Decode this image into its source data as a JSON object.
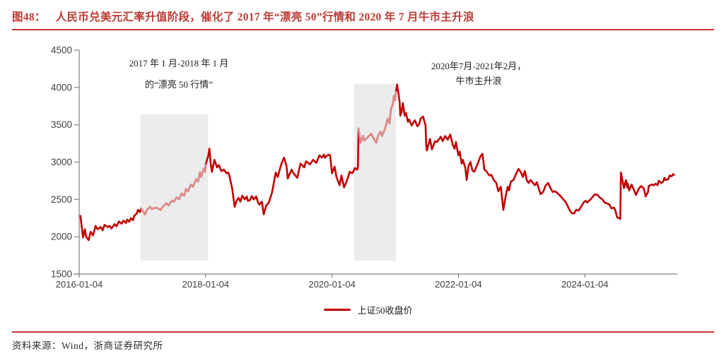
{
  "figure": {
    "label": "图48：",
    "title": "人民币兑美元汇率升值阶段，催化了 2017 年“漂亮 50”行情和 2020 年 7 月牛市主升浪",
    "source": "资料来源：Wind，浙商证券研究所"
  },
  "legend": {
    "label": "上证50收盘价"
  },
  "annotations": [
    {
      "lines": [
        "2017 年 1 月-2018 年 1 月",
        "的“漂亮 50 行情”"
      ]
    },
    {
      "lines": [
        "2020年7月-2021年2月，",
        "牛市主升浪"
      ]
    }
  ],
  "colors": {
    "line": "#c00000",
    "line_highlight": "#db8e8e",
    "band": "#ececec",
    "axis": "#808080",
    "tick_text": "#3f3f3f",
    "accent_red": "#c93530"
  },
  "chart_data": {
    "type": "line",
    "title": "",
    "xlabel": "",
    "ylabel": "",
    "ylim": [
      1500,
      4500
    ],
    "xlim": [
      2016,
      2025.47
    ],
    "grid": false,
    "legend_position": "bottom-center",
    "y_ticks": [
      1500,
      2000,
      2500,
      3000,
      3500,
      4000,
      4500
    ],
    "x_ticks": [
      {
        "value": 2016,
        "label": "2016-01-04"
      },
      {
        "value": 2018,
        "label": "2018-01-04"
      },
      {
        "value": 2020,
        "label": "2020-01-04"
      },
      {
        "value": 2022,
        "label": "2022-01-04"
      },
      {
        "value": 2024,
        "label": "2024-01-04"
      }
    ],
    "bands": [
      {
        "t_start": 2016.97,
        "t_end": 2018.04,
        "v_bottom": 1680,
        "v_top": 3640
      },
      {
        "t_start": 2020.35,
        "t_end": 2021.01,
        "v_bottom": 1680,
        "v_top": 4050
      }
    ],
    "line_highlight_ranges": [
      {
        "t_start": 2016.975,
        "t_end": 2018.005
      },
      {
        "t_start": 2020.415,
        "t_end": 2021.015
      }
    ],
    "series": [
      {
        "name": "上证50收盘价",
        "points": [
          [
            2016.02,
            2280
          ],
          [
            2016.06,
            1990
          ],
          [
            2016.09,
            2100
          ],
          [
            2016.11,
            2000
          ],
          [
            2016.15,
            1955
          ],
          [
            2016.18,
            2065
          ],
          [
            2016.22,
            2020
          ],
          [
            2016.26,
            2145
          ],
          [
            2016.29,
            2100
          ],
          [
            2016.34,
            2130
          ],
          [
            2016.37,
            2085
          ],
          [
            2016.4,
            2160
          ],
          [
            2016.45,
            2130
          ],
          [
            2016.48,
            2145
          ],
          [
            2016.51,
            2110
          ],
          [
            2016.56,
            2170
          ],
          [
            2016.59,
            2140
          ],
          [
            2016.63,
            2205
          ],
          [
            2016.67,
            2175
          ],
          [
            2016.7,
            2215
          ],
          [
            2016.74,
            2185
          ],
          [
            2016.76,
            2230
          ],
          [
            2016.79,
            2200
          ],
          [
            2016.82,
            2250
          ],
          [
            2016.85,
            2220
          ],
          [
            2016.87,
            2280
          ],
          [
            2016.91,
            2310
          ],
          [
            2016.93,
            2360
          ],
          [
            2016.96,
            2330
          ],
          [
            2016.98,
            2380
          ],
          [
            2017.04,
            2300
          ],
          [
            2017.07,
            2360
          ],
          [
            2017.12,
            2400
          ],
          [
            2017.15,
            2370
          ],
          [
            2017.17,
            2380
          ],
          [
            2017.23,
            2390
          ],
          [
            2017.26,
            2370
          ],
          [
            2017.29,
            2360
          ],
          [
            2017.32,
            2400
          ],
          [
            2017.38,
            2450
          ],
          [
            2017.41,
            2420
          ],
          [
            2017.47,
            2485
          ],
          [
            2017.5,
            2470
          ],
          [
            2017.54,
            2530
          ],
          [
            2017.58,
            2500
          ],
          [
            2017.62,
            2580
          ],
          [
            2017.66,
            2550
          ],
          [
            2017.69,
            2640
          ],
          [
            2017.72,
            2610
          ],
          [
            2017.77,
            2700
          ],
          [
            2017.8,
            2670
          ],
          [
            2017.85,
            2770
          ],
          [
            2017.88,
            2740
          ],
          [
            2017.91,
            2865
          ],
          [
            2017.93,
            2800
          ],
          [
            2017.97,
            2910
          ],
          [
            2017.99,
            2870
          ],
          [
            2018.0,
            2960
          ],
          [
            2018.04,
            3080
          ],
          [
            2018.06,
            3180
          ],
          [
            2018.08,
            2980
          ],
          [
            2018.1,
            2870
          ],
          [
            2018.14,
            3030
          ],
          [
            2018.18,
            2930
          ],
          [
            2018.21,
            2960
          ],
          [
            2018.25,
            2880
          ],
          [
            2018.29,
            2900
          ],
          [
            2018.33,
            2850
          ],
          [
            2018.36,
            2860
          ],
          [
            2018.38,
            2800
          ],
          [
            2018.42,
            2650
          ],
          [
            2018.46,
            2400
          ],
          [
            2018.49,
            2480
          ],
          [
            2018.52,
            2520
          ],
          [
            2018.55,
            2470
          ],
          [
            2018.58,
            2550
          ],
          [
            2018.62,
            2500
          ],
          [
            2018.65,
            2540
          ],
          [
            2018.67,
            2480
          ],
          [
            2018.7,
            2490
          ],
          [
            2018.73,
            2545
          ],
          [
            2018.76,
            2500
          ],
          [
            2018.8,
            2540
          ],
          [
            2018.83,
            2460
          ],
          [
            2018.85,
            2430
          ],
          [
            2018.89,
            2470
          ],
          [
            2018.92,
            2300
          ],
          [
            2018.96,
            2420
          ],
          [
            2019.0,
            2460
          ],
          [
            2019.05,
            2590
          ],
          [
            2019.11,
            2860
          ],
          [
            2019.14,
            2800
          ],
          [
            2019.2,
            2980
          ],
          [
            2019.24,
            3060
          ],
          [
            2019.28,
            2950
          ],
          [
            2019.3,
            2780
          ],
          [
            2019.36,
            2900
          ],
          [
            2019.39,
            2850
          ],
          [
            2019.45,
            2790
          ],
          [
            2019.5,
            2980
          ],
          [
            2019.56,
            2930
          ],
          [
            2019.59,
            3010
          ],
          [
            2019.65,
            2970
          ],
          [
            2019.7,
            3030
          ],
          [
            2019.75,
            2990
          ],
          [
            2019.8,
            3090
          ],
          [
            2019.84,
            3060
          ],
          [
            2019.87,
            3100
          ],
          [
            2019.89,
            3060
          ],
          [
            2019.91,
            3080
          ],
          [
            2019.95,
            3100
          ],
          [
            2019.97,
            3090
          ],
          [
            2020.0,
            2850
          ],
          [
            2020.04,
            2940
          ],
          [
            2020.07,
            2800
          ],
          [
            2020.12,
            2690
          ],
          [
            2020.15,
            2820
          ],
          [
            2020.19,
            2660
          ],
          [
            2020.23,
            2740
          ],
          [
            2020.25,
            2790
          ],
          [
            2020.28,
            2870
          ],
          [
            2020.32,
            2850
          ],
          [
            2020.34,
            2880
          ],
          [
            2020.36,
            2920
          ],
          [
            2020.4,
            2900
          ],
          [
            2020.41,
            2950
          ],
          [
            2020.42,
            3450
          ],
          [
            2020.45,
            3260
          ],
          [
            2020.49,
            3350
          ],
          [
            2020.51,
            3290
          ],
          [
            2020.56,
            3330
          ],
          [
            2020.62,
            3380
          ],
          [
            2020.65,
            3330
          ],
          [
            2020.7,
            3260
          ],
          [
            2020.73,
            3360
          ],
          [
            2020.77,
            3410
          ],
          [
            2020.79,
            3350
          ],
          [
            2020.82,
            3410
          ],
          [
            2020.84,
            3450
          ],
          [
            2020.88,
            3580
          ],
          [
            2020.91,
            3520
          ],
          [
            2020.93,
            3700
          ],
          [
            2020.96,
            3770
          ],
          [
            2020.98,
            3890
          ],
          [
            2021.0,
            3830
          ],
          [
            2021.01,
            3940
          ],
          [
            2021.03,
            4040
          ],
          [
            2021.07,
            3800
          ],
          [
            2021.08,
            3620
          ],
          [
            2021.1,
            3670
          ],
          [
            2021.12,
            3790
          ],
          [
            2021.15,
            3620
          ],
          [
            2021.17,
            3660
          ],
          [
            2021.2,
            3540
          ],
          [
            2021.22,
            3570
          ],
          [
            2021.26,
            3490
          ],
          [
            2021.28,
            3520
          ],
          [
            2021.31,
            3560
          ],
          [
            2021.35,
            3480
          ],
          [
            2021.38,
            3510
          ],
          [
            2021.4,
            3580
          ],
          [
            2021.44,
            3610
          ],
          [
            2021.46,
            3550
          ],
          [
            2021.48,
            3490
          ],
          [
            2021.49,
            3230
          ],
          [
            2021.5,
            3155
          ],
          [
            2021.55,
            3310
          ],
          [
            2021.58,
            3170
          ],
          [
            2021.63,
            3280
          ],
          [
            2021.66,
            3270
          ],
          [
            2021.72,
            3340
          ],
          [
            2021.75,
            3280
          ],
          [
            2021.79,
            3350
          ],
          [
            2021.83,
            3300
          ],
          [
            2021.87,
            3370
          ],
          [
            2021.91,
            3230
          ],
          [
            2021.94,
            3180
          ],
          [
            2021.96,
            3270
          ],
          [
            2022.0,
            3090
          ],
          [
            2022.02,
            3140
          ],
          [
            2022.05,
            2980
          ],
          [
            2022.07,
            3030
          ],
          [
            2022.11,
            2920
          ],
          [
            2022.13,
            2760
          ],
          [
            2022.16,
            2950
          ],
          [
            2022.19,
            3000
          ],
          [
            2022.22,
            2890
          ],
          [
            2022.25,
            2870
          ],
          [
            2022.3,
            2970
          ],
          [
            2022.35,
            3080
          ],
          [
            2022.38,
            3110
          ],
          [
            2022.41,
            2900
          ],
          [
            2022.44,
            2880
          ],
          [
            2022.49,
            2820
          ],
          [
            2022.52,
            2830
          ],
          [
            2022.56,
            2760
          ],
          [
            2022.6,
            2720
          ],
          [
            2022.63,
            2610
          ],
          [
            2022.67,
            2670
          ],
          [
            2022.71,
            2360
          ],
          [
            2022.75,
            2560
          ],
          [
            2022.78,
            2670
          ],
          [
            2022.8,
            2620
          ],
          [
            2022.83,
            2740
          ],
          [
            2022.87,
            2760
          ],
          [
            2022.89,
            2800
          ],
          [
            2022.95,
            2910
          ],
          [
            2022.99,
            2860
          ],
          [
            2023.02,
            2800
          ],
          [
            2023.05,
            2880
          ],
          [
            2023.08,
            2760
          ],
          [
            2023.11,
            2720
          ],
          [
            2023.14,
            2760
          ],
          [
            2023.17,
            2730
          ],
          [
            2023.21,
            2690
          ],
          [
            2023.24,
            2730
          ],
          [
            2023.27,
            2650
          ],
          [
            2023.3,
            2570
          ],
          [
            2023.34,
            2600
          ],
          [
            2023.38,
            2690
          ],
          [
            2023.42,
            2720
          ],
          [
            2023.44,
            2680
          ],
          [
            2023.49,
            2600
          ],
          [
            2023.52,
            2610
          ],
          [
            2023.56,
            2590
          ],
          [
            2023.62,
            2540
          ],
          [
            2023.66,
            2500
          ],
          [
            2023.7,
            2460
          ],
          [
            2023.75,
            2370
          ],
          [
            2023.79,
            2320
          ],
          [
            2023.83,
            2310
          ],
          [
            2023.86,
            2360
          ],
          [
            2023.9,
            2350
          ],
          [
            2023.94,
            2400
          ],
          [
            2023.98,
            2460
          ],
          [
            2024.01,
            2480
          ],
          [
            2024.04,
            2460
          ],
          [
            2024.09,
            2500
          ],
          [
            2024.12,
            2530
          ],
          [
            2024.16,
            2570
          ],
          [
            2024.2,
            2560
          ],
          [
            2024.23,
            2530
          ],
          [
            2024.28,
            2500
          ],
          [
            2024.31,
            2460
          ],
          [
            2024.34,
            2450
          ],
          [
            2024.39,
            2430
          ],
          [
            2024.42,
            2380
          ],
          [
            2024.46,
            2390
          ],
          [
            2024.48,
            2360
          ],
          [
            2024.51,
            2260
          ],
          [
            2024.56,
            2240
          ],
          [
            2024.57,
            2860
          ],
          [
            2024.62,
            2650
          ],
          [
            2024.65,
            2760
          ],
          [
            2024.67,
            2660
          ],
          [
            2024.68,
            2710
          ],
          [
            2024.7,
            2620
          ],
          [
            2024.74,
            2700
          ],
          [
            2024.76,
            2660
          ],
          [
            2024.79,
            2600
          ],
          [
            2024.81,
            2560
          ],
          [
            2024.85,
            2640
          ],
          [
            2024.89,
            2680
          ],
          [
            2024.93,
            2650
          ],
          [
            2024.95,
            2590
          ],
          [
            2024.96,
            2540
          ],
          [
            2025.0,
            2600
          ],
          [
            2025.01,
            2680
          ],
          [
            2025.06,
            2700
          ],
          [
            2025.09,
            2690
          ],
          [
            2025.12,
            2710
          ],
          [
            2025.15,
            2690
          ],
          [
            2025.17,
            2750
          ],
          [
            2025.21,
            2720
          ],
          [
            2025.24,
            2740
          ],
          [
            2025.26,
            2790
          ],
          [
            2025.28,
            2760
          ],
          [
            2025.32,
            2770
          ],
          [
            2025.34,
            2820
          ],
          [
            2025.37,
            2810
          ],
          [
            2025.4,
            2840
          ],
          [
            2025.41,
            2830
          ]
        ]
      }
    ]
  }
}
